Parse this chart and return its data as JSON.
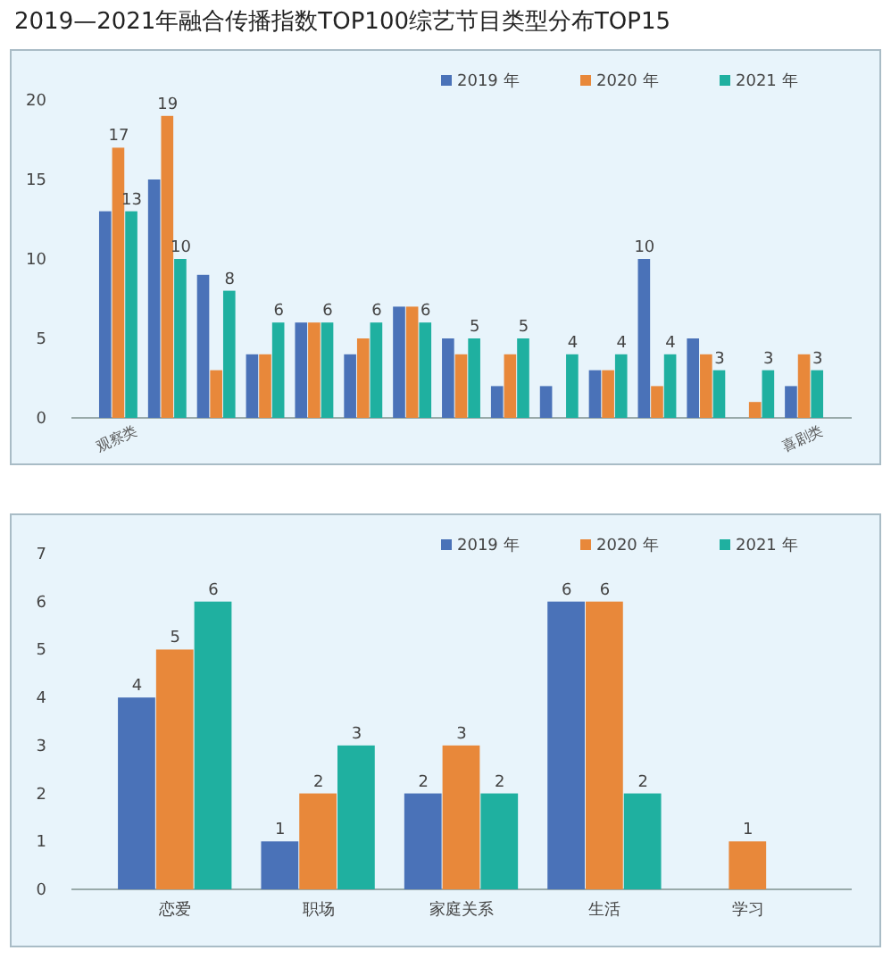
{
  "chart_data": [
    {
      "type": "bar",
      "title": "2019—2021年融合传播指数TOP100综艺节目类型分布TOP15",
      "categories": [
        "观察类",
        null,
        null,
        null,
        null,
        null,
        null,
        null,
        null,
        null,
        null,
        null,
        null,
        null,
        "喜剧类"
      ],
      "ylim": [
        0,
        20
      ],
      "yticks": [
        0,
        5,
        10,
        15,
        20
      ],
      "legend": "top right",
      "series": [
        {
          "name": "2019 年",
          "color": "#4a72b8",
          "values": [
            13,
            15,
            9,
            4,
            6,
            4,
            7,
            5,
            2,
            2,
            3,
            10,
            5,
            null,
            2
          ],
          "value_labels": [
            null,
            null,
            null,
            null,
            null,
            null,
            null,
            null,
            null,
            null,
            null,
            "10",
            null,
            null,
            null
          ]
        },
        {
          "name": "2020 年",
          "color": "#e8883a",
          "values": [
            17,
            19,
            3,
            4,
            6,
            5,
            7,
            4,
            4,
            null,
            3,
            2,
            4,
            1,
            4
          ],
          "value_labels": [
            "17",
            "19",
            null,
            null,
            null,
            null,
            null,
            null,
            null,
            null,
            null,
            null,
            null,
            null,
            null
          ]
        },
        {
          "name": "2021 年",
          "color": "#1fb0a0",
          "values": [
            13,
            10,
            8,
            6,
            6,
            6,
            6,
            5,
            5,
            4,
            4,
            4,
            3,
            3,
            3
          ],
          "value_labels": [
            "13",
            "10",
            "8",
            "6",
            "6",
            "6",
            "6",
            "5",
            "5",
            "4",
            "4",
            "4",
            "3",
            "3",
            "3"
          ]
        }
      ]
    },
    {
      "type": "bar",
      "categories": [
        "恋爱",
        "职场",
        "家庭关系",
        "生活",
        "学习"
      ],
      "ylim": [
        0,
        7
      ],
      "yticks": [
        0,
        1,
        2,
        3,
        4,
        5,
        6,
        7
      ],
      "legend": "top right",
      "data_labels": true,
      "series": [
        {
          "name": "2019 年",
          "color": "#4a72b8",
          "values": [
            4,
            1,
            2,
            6,
            null
          ]
        },
        {
          "name": "2020 年",
          "color": "#e8883a",
          "values": [
            5,
            2,
            3,
            6,
            1
          ]
        },
        {
          "name": "2021 年",
          "color": "#1fb0a0",
          "values": [
            6,
            3,
            2,
            2,
            null
          ]
        }
      ]
    }
  ]
}
